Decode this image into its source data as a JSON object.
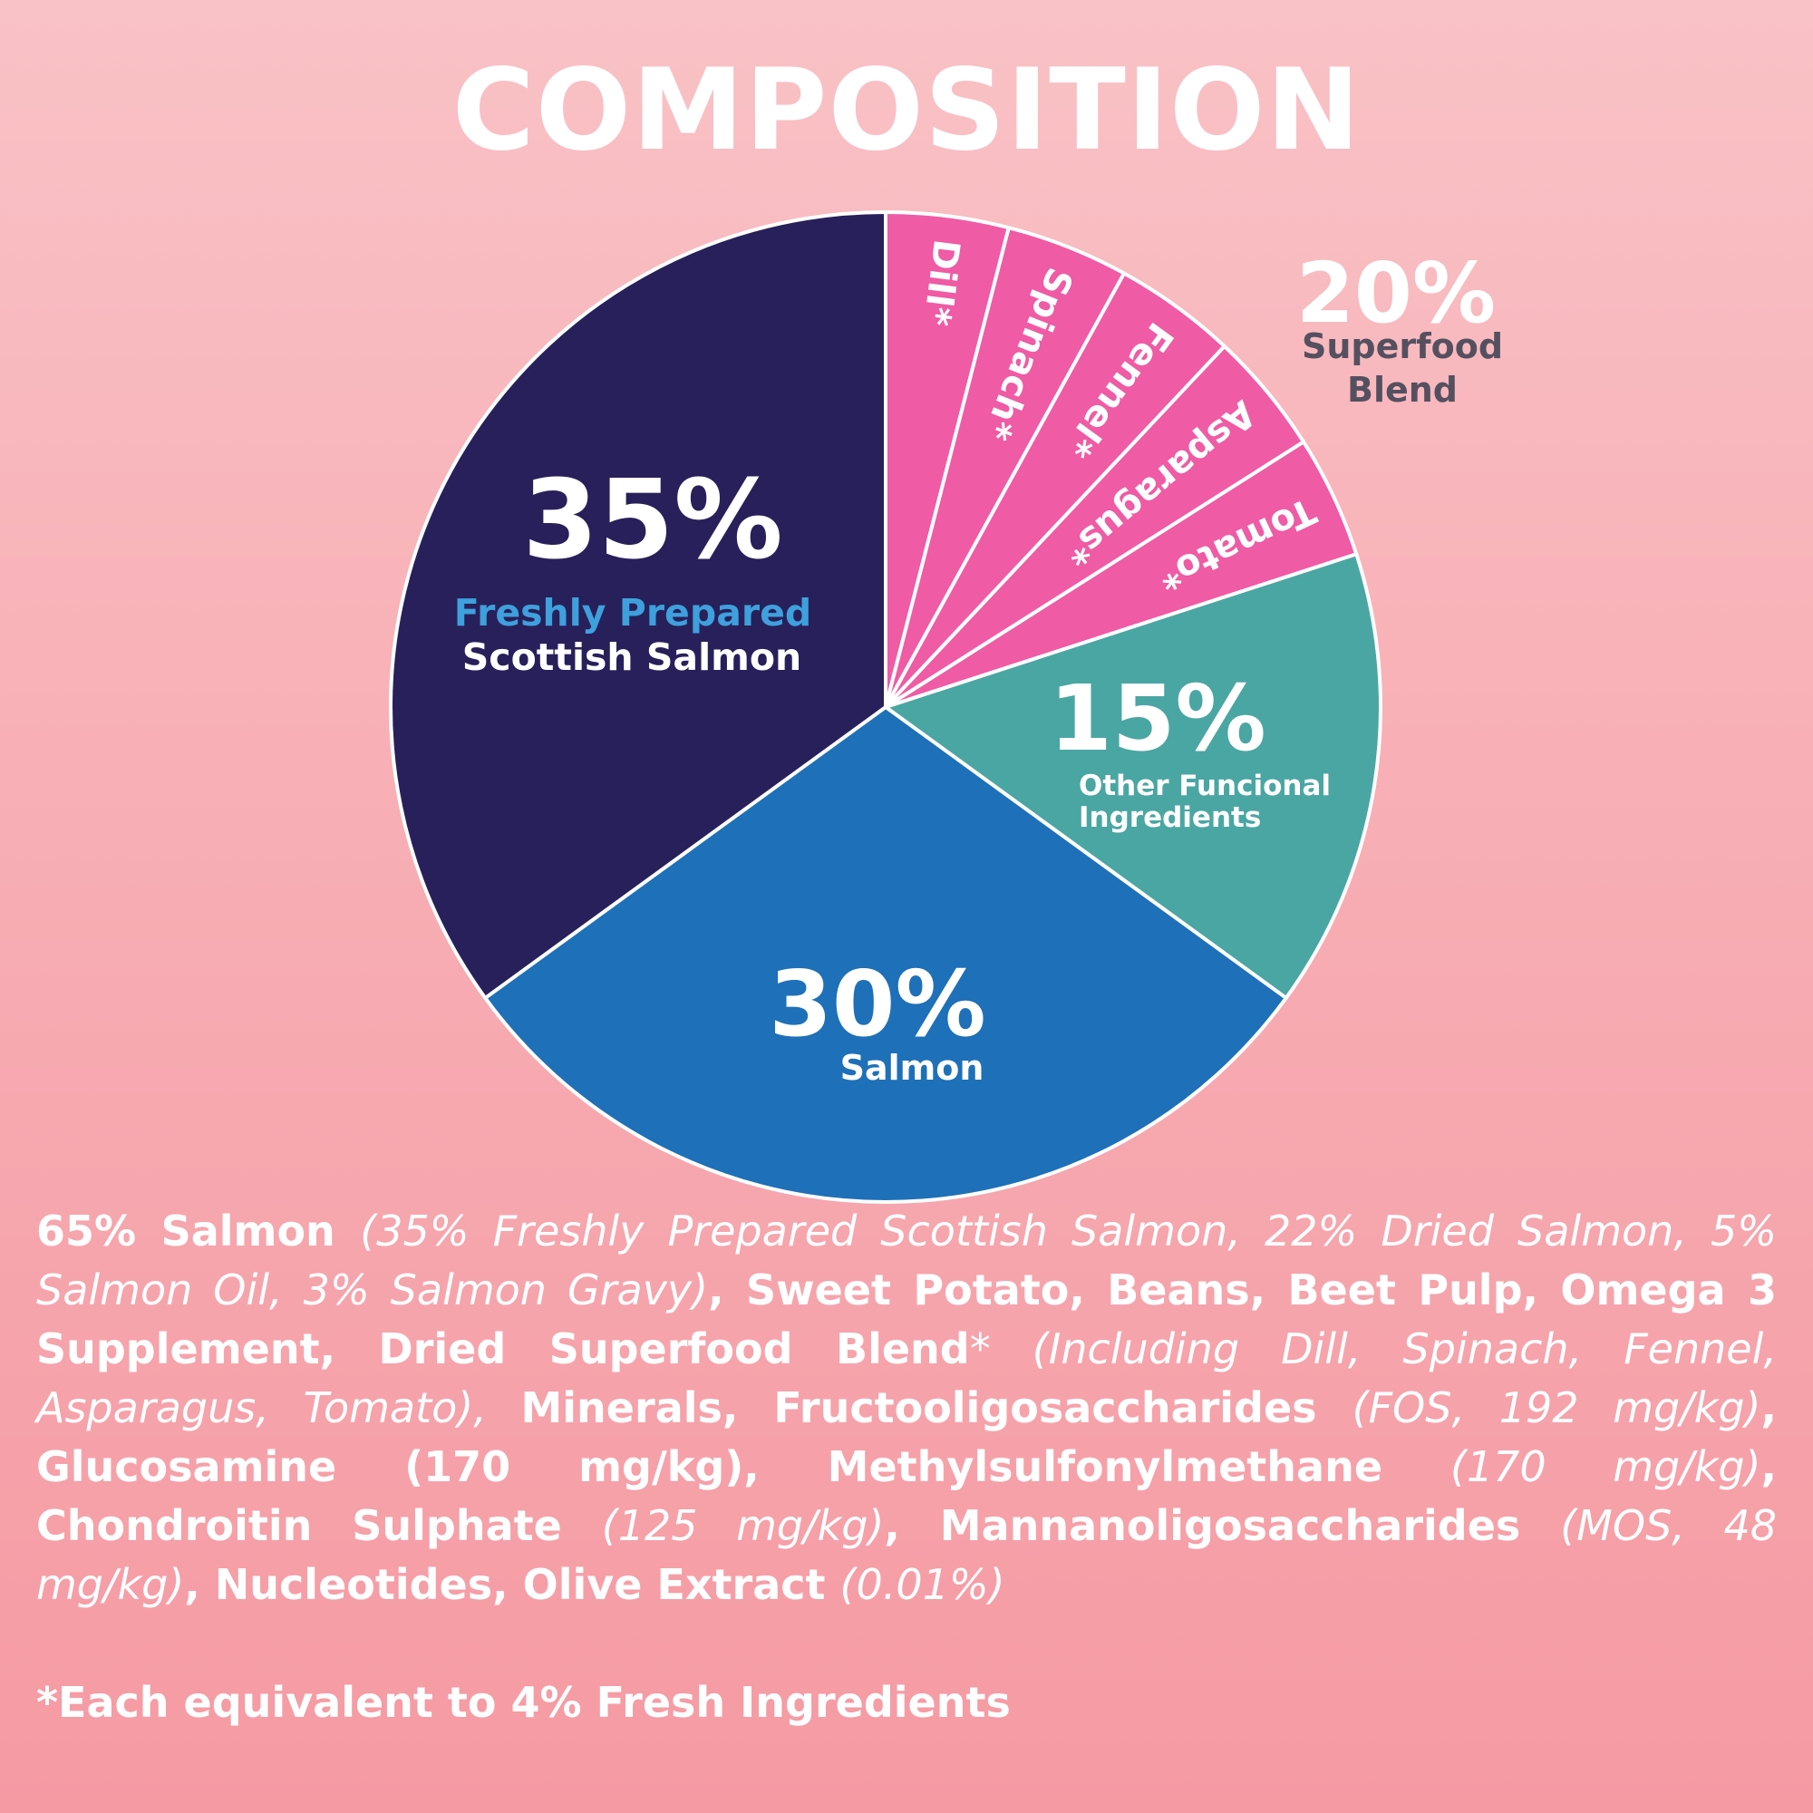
{
  "chart_data": {
    "type": "pie",
    "title": "COMPOSITION",
    "slices": [
      {
        "label": "Scottish Salmon",
        "sublabel": "Freshly Prepared",
        "value_label": "35%",
        "value": 35,
        "color": "#28205a",
        "label_color": "#ffffff",
        "sublabel_color": "#3ea0dc"
      },
      {
        "label": "Salmon",
        "value_label": "30%",
        "value": 30,
        "color": "#1e70b8",
        "label_color": "#ffffff"
      },
      {
        "label_lines": [
          "Other Funcional",
          "Ingredients"
        ],
        "value_label": "15%",
        "value": 15,
        "color": "#4aa6a3",
        "label_color": "#ffffff"
      },
      {
        "label_lines": [
          "Superfood",
          "Blend"
        ],
        "value_label": "20%",
        "value": 20,
        "color": "#ef5ba4",
        "label_color": "#555060",
        "subslices": [
          {
            "label": "Tomato*",
            "value": 4
          },
          {
            "label": "Asparagus*",
            "value": 4
          },
          {
            "label": "Fennel*",
            "value": 4
          },
          {
            "label": "Spinach*",
            "value": 4
          },
          {
            "label": "Dill*",
            "value": 4
          }
        ]
      }
    ]
  },
  "ingredients": [
    {
      "text": "65% Salmon ",
      "style": "b"
    },
    {
      "text": "(35% Freshly Prepared Scottish Salmon, 22% Dried Salmon, 5% Salmon Oil, 3% Salmon Gravy)",
      "style": "i"
    },
    {
      "text": ", Sweet Potato, Beans, Beet Pulp, Omega 3 Supplement, Dried Superfood Blend",
      "style": "b"
    },
    {
      "text": "* (Including Dill, Spinach, Fennel, Asparagus, Tomato), ",
      "style": "i"
    },
    {
      "text": "Minerals, Fructooligosaccharides ",
      "style": "b"
    },
    {
      "text": "(FOS, 192 mg/kg)",
      "style": "i"
    },
    {
      "text": ", Glucosamine (170 mg/kg), Methylsulfonylmethane ",
      "style": "b"
    },
    {
      "text": "(170 mg/kg)",
      "style": "i"
    },
    {
      "text": ", Chondroitin Sulphate ",
      "style": "b"
    },
    {
      "text": "(125 mg/kg)",
      "style": "i"
    },
    {
      "text": ", Mannanoligosaccharides ",
      "style": "b"
    },
    {
      "text": "(MOS, 48 mg/kg)",
      "style": "i"
    },
    {
      "text": ", Nucleotides, Olive Extract ",
      "style": "b"
    },
    {
      "text": "(0.01%)",
      "style": "i"
    }
  ],
  "footnote": "*Each equivalent to 4% Fresh Ingredients"
}
